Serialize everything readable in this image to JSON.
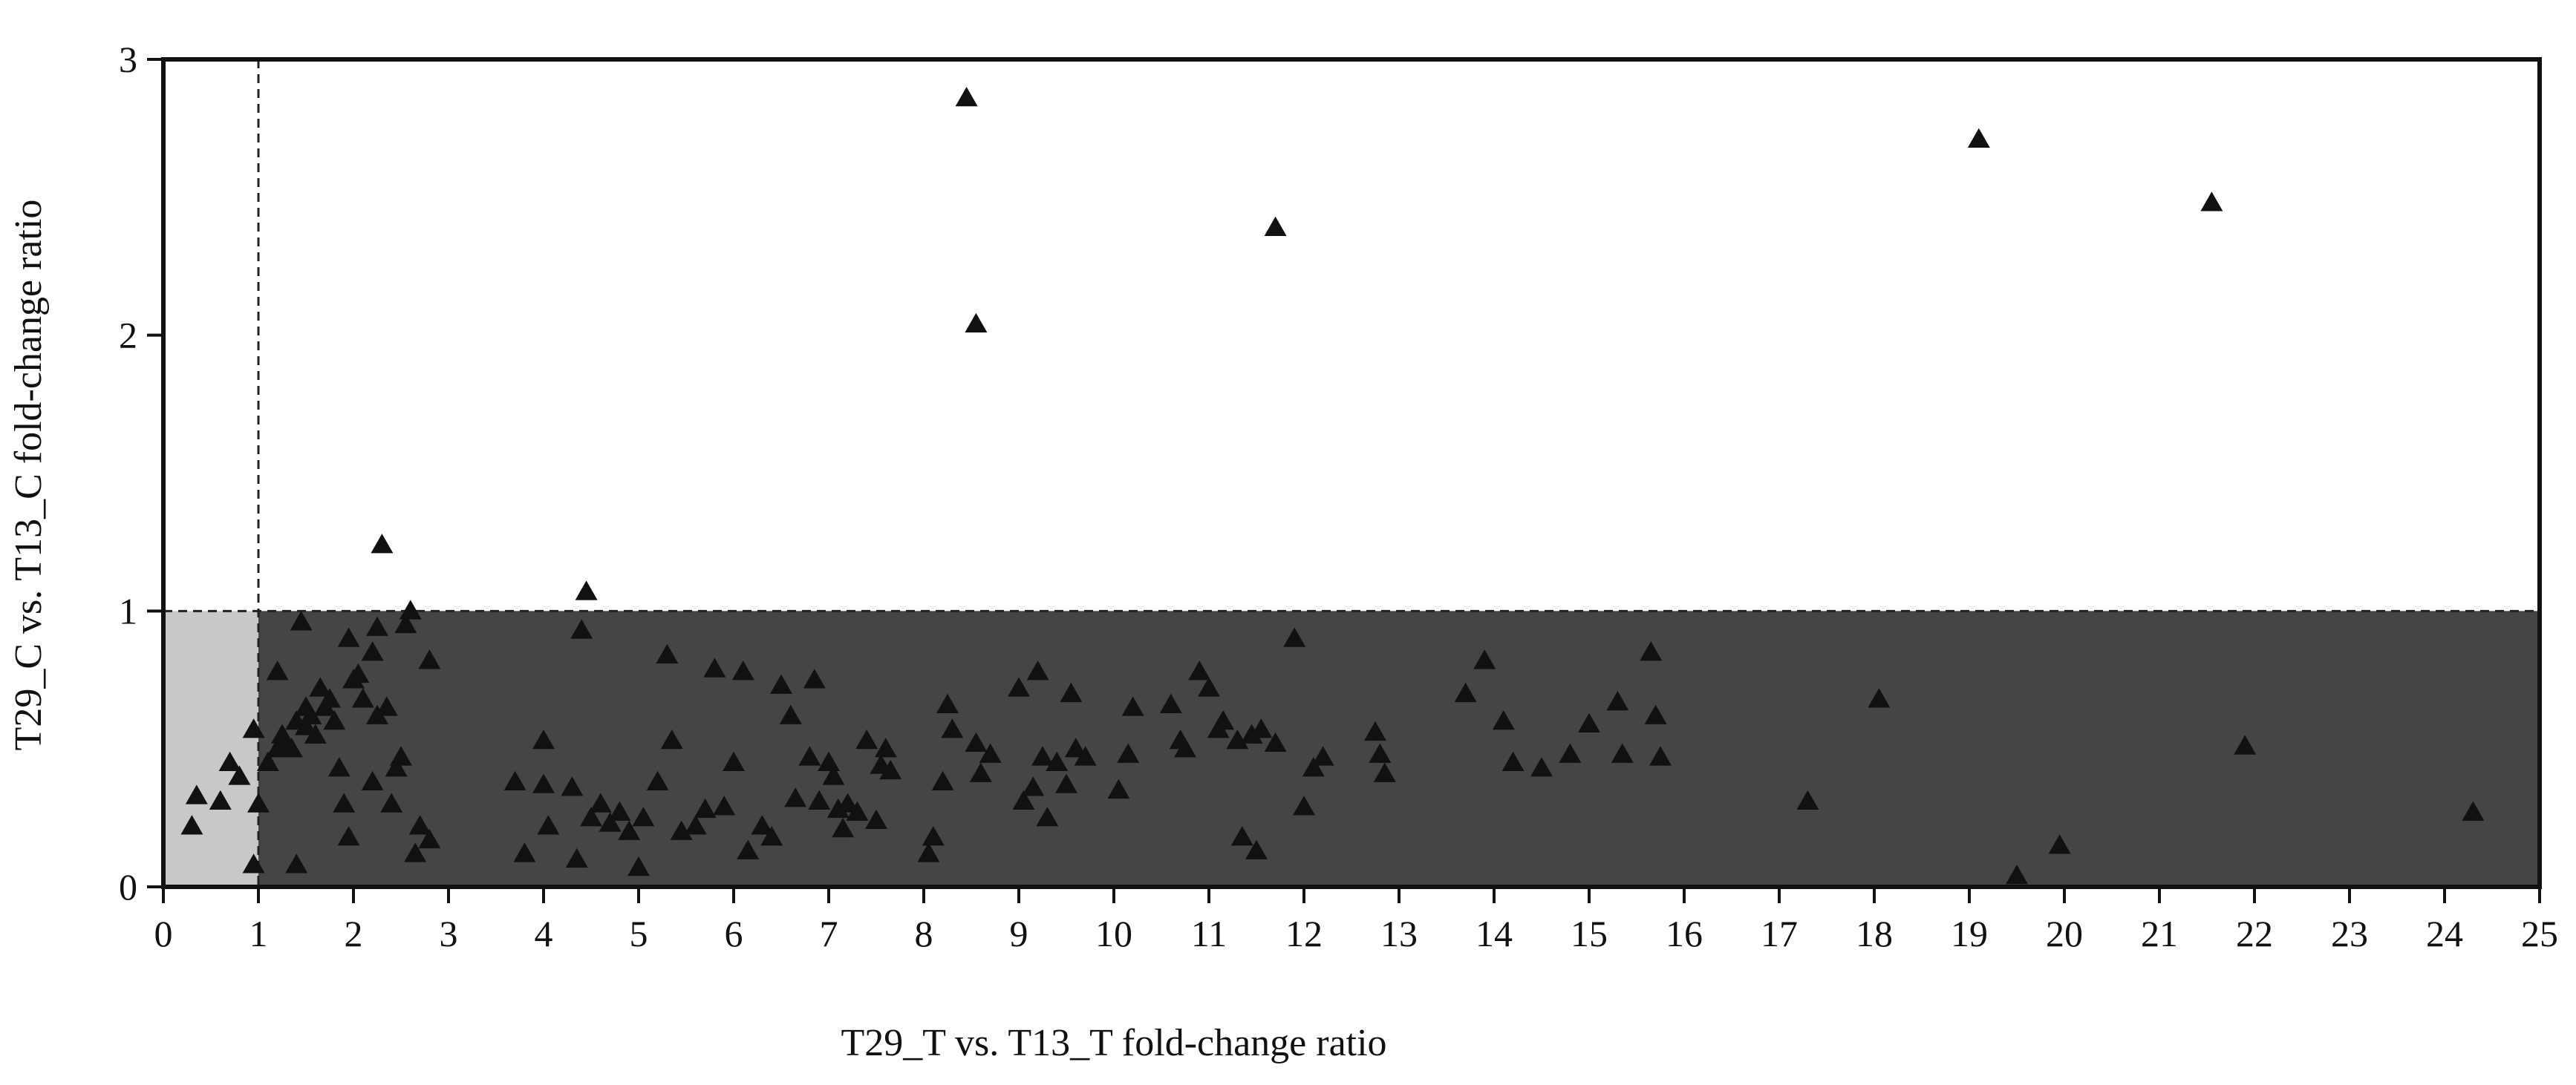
{
  "chart_data": {
    "type": "scatter",
    "xlabel": "T29_T vs. T13_T fold-change ratio",
    "ylabel": "T29_C vs. T13_C fold-change ratio",
    "xlim": [
      0,
      25
    ],
    "ylim": [
      0,
      3
    ],
    "x_ticks": [
      0,
      1,
      2,
      3,
      4,
      5,
      6,
      7,
      8,
      9,
      10,
      11,
      12,
      13,
      14,
      15,
      16,
      17,
      18,
      19,
      20,
      21,
      22,
      23,
      24,
      25
    ],
    "y_ticks": [
      0,
      1,
      2,
      3
    ],
    "reference_lines": {
      "x": 1,
      "y": 1,
      "style": "dashed"
    },
    "regions": [
      {
        "x": [
          0,
          1
        ],
        "y": [
          0,
          1
        ],
        "color": "#c8c8c8"
      },
      {
        "x": [
          1,
          25
        ],
        "y": [
          0,
          1
        ],
        "color": "#454545"
      }
    ],
    "marker": "triangle",
    "marker_color": "#111111",
    "grid": false,
    "points": [
      [
        0.3,
        0.22
      ],
      [
        0.35,
        0.33
      ],
      [
        0.6,
        0.31
      ],
      [
        0.7,
        0.45
      ],
      [
        0.8,
        0.4
      ],
      [
        0.95,
        0.57
      ],
      [
        0.95,
        0.08
      ],
      [
        1.0,
        0.3
      ],
      [
        1.1,
        0.45
      ],
      [
        1.2,
        0.5
      ],
      [
        1.2,
        0.78
      ],
      [
        1.25,
        0.55
      ],
      [
        1.3,
        0.52
      ],
      [
        1.35,
        0.5
      ],
      [
        1.4,
        0.6
      ],
      [
        1.4,
        0.08
      ],
      [
        1.45,
        0.96
      ],
      [
        1.5,
        0.65
      ],
      [
        1.5,
        0.58
      ],
      [
        1.55,
        0.62
      ],
      [
        1.6,
        0.55
      ],
      [
        1.65,
        0.72
      ],
      [
        1.7,
        0.65
      ],
      [
        1.75,
        0.68
      ],
      [
        1.8,
        0.6
      ],
      [
        1.85,
        0.43
      ],
      [
        1.9,
        0.3
      ],
      [
        1.95,
        0.9
      ],
      [
        1.95,
        0.18
      ],
      [
        2.0,
        0.75
      ],
      [
        2.05,
        0.77
      ],
      [
        2.1,
        0.68
      ],
      [
        2.2,
        0.85
      ],
      [
        2.2,
        0.38
      ],
      [
        2.25,
        0.94
      ],
      [
        2.25,
        0.62
      ],
      [
        2.3,
        1.24
      ],
      [
        2.35,
        0.65
      ],
      [
        2.4,
        0.3
      ],
      [
        2.45,
        0.43
      ],
      [
        2.5,
        0.47
      ],
      [
        2.55,
        0.95
      ],
      [
        2.6,
        1.0
      ],
      [
        2.65,
        0.12
      ],
      [
        2.7,
        0.22
      ],
      [
        2.8,
        0.82
      ],
      [
        2.8,
        0.17
      ],
      [
        3.7,
        0.38
      ],
      [
        3.8,
        0.12
      ],
      [
        4.0,
        0.53
      ],
      [
        4.0,
        0.37
      ],
      [
        4.05,
        0.22
      ],
      [
        4.3,
        0.36
      ],
      [
        4.35,
        0.1
      ],
      [
        4.4,
        0.93
      ],
      [
        4.45,
        1.07
      ],
      [
        4.5,
        0.25
      ],
      [
        4.6,
        0.3
      ],
      [
        4.7,
        0.23
      ],
      [
        4.8,
        0.27
      ],
      [
        4.9,
        0.2
      ],
      [
        5.0,
        0.07
      ],
      [
        5.05,
        0.25
      ],
      [
        5.2,
        0.38
      ],
      [
        5.3,
        0.84
      ],
      [
        5.35,
        0.53
      ],
      [
        5.45,
        0.2
      ],
      [
        5.6,
        0.22
      ],
      [
        5.7,
        0.28
      ],
      [
        5.8,
        0.79
      ],
      [
        5.9,
        0.29
      ],
      [
        6.0,
        0.45
      ],
      [
        6.1,
        0.78
      ],
      [
        6.15,
        0.13
      ],
      [
        6.3,
        0.22
      ],
      [
        6.4,
        0.18
      ],
      [
        6.5,
        0.73
      ],
      [
        6.6,
        0.62
      ],
      [
        6.65,
        0.32
      ],
      [
        6.8,
        0.47
      ],
      [
        6.85,
        0.75
      ],
      [
        6.9,
        0.31
      ],
      [
        7.0,
        0.45
      ],
      [
        7.05,
        0.4
      ],
      [
        7.1,
        0.28
      ],
      [
        7.15,
        0.21
      ],
      [
        7.2,
        0.3
      ],
      [
        7.3,
        0.27
      ],
      [
        7.4,
        0.53
      ],
      [
        7.5,
        0.24
      ],
      [
        7.55,
        0.44
      ],
      [
        7.6,
        0.5
      ],
      [
        7.65,
        0.42
      ],
      [
        8.05,
        0.12
      ],
      [
        8.1,
        0.18
      ],
      [
        8.2,
        0.38
      ],
      [
        8.25,
        0.66
      ],
      [
        8.3,
        0.57
      ],
      [
        8.45,
        2.86
      ],
      [
        8.55,
        0.52
      ],
      [
        8.55,
        2.04
      ],
      [
        8.6,
        0.41
      ],
      [
        8.7,
        0.48
      ],
      [
        9.0,
        0.72
      ],
      [
        9.05,
        0.31
      ],
      [
        9.15,
        0.36
      ],
      [
        9.2,
        0.78
      ],
      [
        9.25,
        0.47
      ],
      [
        9.3,
        0.25
      ],
      [
        9.4,
        0.45
      ],
      [
        9.5,
        0.37
      ],
      [
        9.55,
        0.7
      ],
      [
        9.6,
        0.5
      ],
      [
        9.7,
        0.47
      ],
      [
        10.05,
        0.35
      ],
      [
        10.15,
        0.48
      ],
      [
        10.2,
        0.65
      ],
      [
        10.6,
        0.66
      ],
      [
        10.7,
        0.53
      ],
      [
        10.75,
        0.5
      ],
      [
        10.9,
        0.78
      ],
      [
        11.0,
        0.72
      ],
      [
        11.1,
        0.57
      ],
      [
        11.15,
        0.6
      ],
      [
        11.3,
        0.53
      ],
      [
        11.35,
        0.18
      ],
      [
        11.45,
        0.55
      ],
      [
        11.5,
        0.13
      ],
      [
        11.55,
        0.57
      ],
      [
        11.7,
        0.52
      ],
      [
        11.7,
        2.39
      ],
      [
        11.9,
        0.9
      ],
      [
        12.0,
        0.29
      ],
      [
        12.1,
        0.43
      ],
      [
        12.2,
        0.47
      ],
      [
        12.75,
        0.56
      ],
      [
        12.8,
        0.48
      ],
      [
        12.85,
        0.41
      ],
      [
        13.7,
        0.7
      ],
      [
        13.9,
        0.82
      ],
      [
        14.1,
        0.6
      ],
      [
        14.2,
        0.45
      ],
      [
        14.5,
        0.43
      ],
      [
        14.8,
        0.48
      ],
      [
        15.0,
        0.59
      ],
      [
        15.3,
        0.67
      ],
      [
        15.35,
        0.48
      ],
      [
        15.65,
        0.85
      ],
      [
        15.7,
        0.62
      ],
      [
        15.75,
        0.47
      ],
      [
        17.3,
        0.31
      ],
      [
        18.05,
        0.68
      ],
      [
        19.1,
        2.71
      ],
      [
        19.5,
        0.04
      ],
      [
        19.95,
        0.15
      ],
      [
        21.55,
        2.48
      ],
      [
        21.9,
        0.51
      ],
      [
        24.3,
        0.27
      ]
    ]
  }
}
